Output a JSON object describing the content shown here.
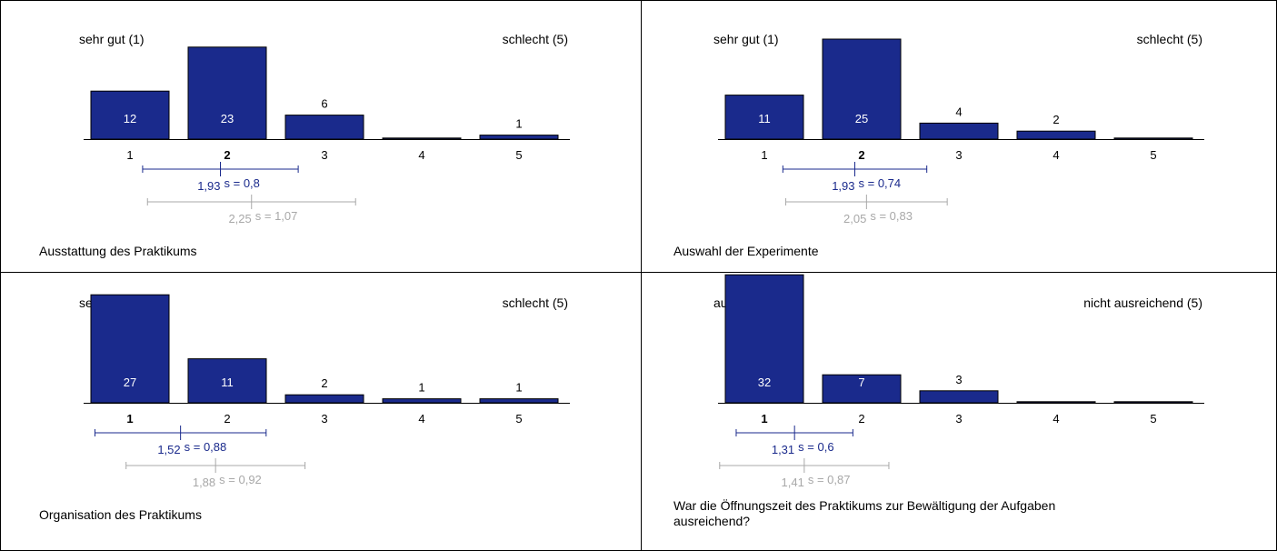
{
  "colors": {
    "bar_fill": "#1a2a8c",
    "bar_stroke": "#000000",
    "primary_stat": "#1a2a8c",
    "secondary_stat": "#a8a8a8",
    "text": "#000000",
    "border": "#000000"
  },
  "chart_data": [
    {
      "type": "bar",
      "title": "Ausstattung des Praktikums",
      "left_anchor": "sehr gut (1)",
      "right_anchor": "schlecht (5)",
      "categories": [
        "1",
        "2",
        "3",
        "4",
        "5"
      ],
      "values": [
        12,
        23,
        6,
        0,
        1
      ],
      "value_labels": [
        "12",
        "23",
        "6",
        "",
        "1"
      ],
      "bold_category": "2",
      "mean": 1.93,
      "mean_label": "1,93",
      "sd": 0.8,
      "sd_label": "s = 0,8",
      "ref_mean": 2.25,
      "ref_mean_label": "2,25",
      "ref_sd": 1.07,
      "ref_sd_label": "s = 1,07"
    },
    {
      "type": "bar",
      "title": "Auswahl der Experimente",
      "left_anchor": "sehr gut (1)",
      "right_anchor": "schlecht (5)",
      "categories": [
        "1",
        "2",
        "3",
        "4",
        "5"
      ],
      "values": [
        11,
        25,
        4,
        2,
        0
      ],
      "value_labels": [
        "11",
        "25",
        "4",
        "2",
        ""
      ],
      "bold_category": "2",
      "mean": 1.93,
      "mean_label": "1,93",
      "sd": 0.74,
      "sd_label": "s = 0,74",
      "ref_mean": 2.05,
      "ref_mean_label": "2,05",
      "ref_sd": 0.83,
      "ref_sd_label": "s = 0,83"
    },
    {
      "type": "bar",
      "title": "Organisation des Praktikums",
      "left_anchor": "sehr gut (1)",
      "right_anchor": "schlecht (5)",
      "categories": [
        "1",
        "2",
        "3",
        "4",
        "5"
      ],
      "values": [
        27,
        11,
        2,
        1,
        1
      ],
      "value_labels": [
        "27",
        "11",
        "2",
        "1",
        "1"
      ],
      "bold_category": "1",
      "mean": 1.52,
      "mean_label": "1,52",
      "sd": 0.88,
      "sd_label": "s = 0,88",
      "ref_mean": 1.88,
      "ref_mean_label": "1,88",
      "ref_sd": 0.92,
      "ref_sd_label": "s = 0,92"
    },
    {
      "type": "bar",
      "title": "War die Öffnungszeit des Praktikums zur Bewältigung der Aufgaben\nausreichend?",
      "left_anchor": "ausreichend (1)",
      "right_anchor": "nicht ausreichend (5)",
      "categories": [
        "1",
        "2",
        "3",
        "4",
        "5"
      ],
      "values": [
        32,
        7,
        3,
        0,
        0
      ],
      "value_labels": [
        "32",
        "7",
        "3",
        "",
        ""
      ],
      "bold_category": "1",
      "mean": 1.31,
      "mean_label": "1,31",
      "sd": 0.6,
      "sd_label": "s = 0,6",
      "ref_mean": 1.41,
      "ref_mean_label": "1,41",
      "ref_sd": 0.87,
      "ref_sd_label": "s = 0,87"
    }
  ]
}
